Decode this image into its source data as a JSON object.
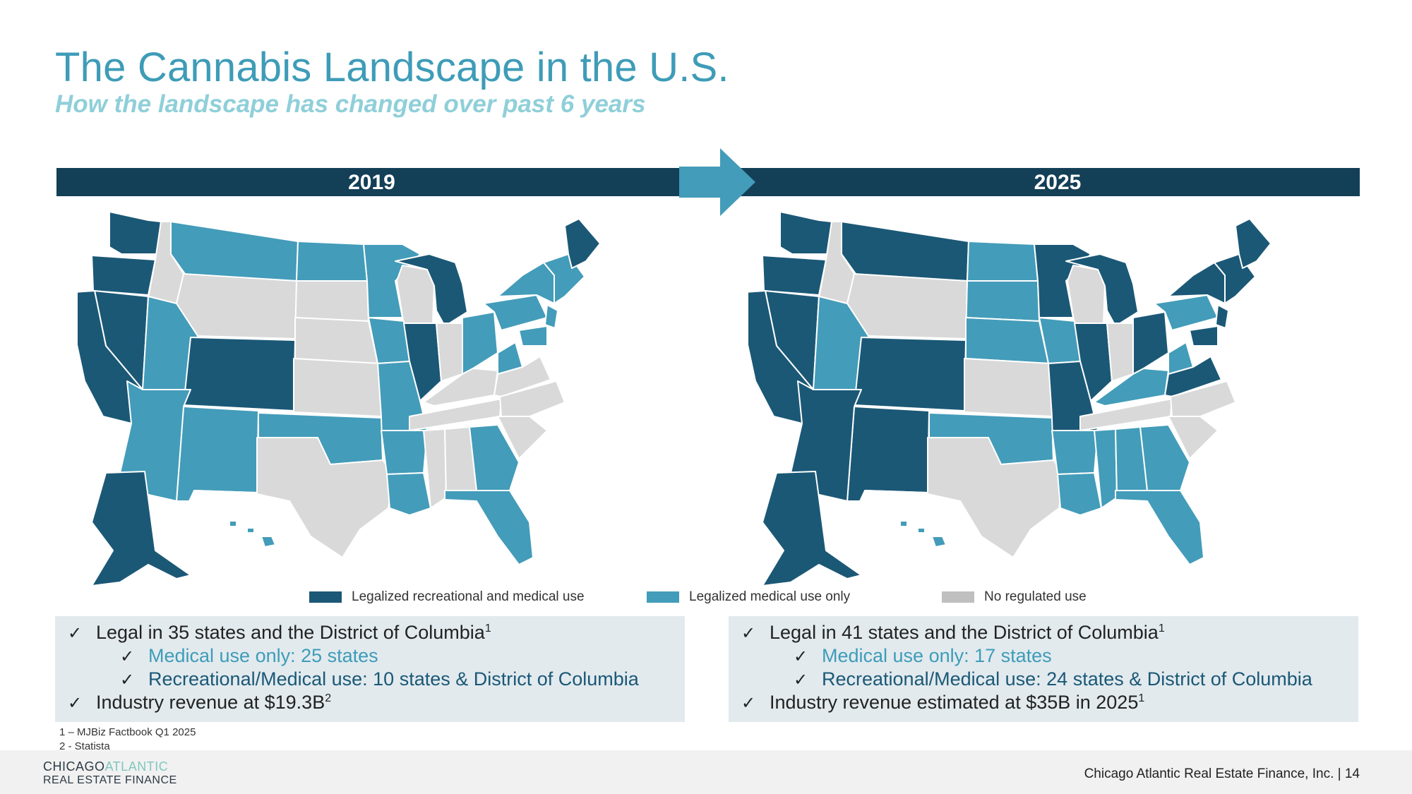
{
  "header": {
    "title": "The Cannabis Landscape in the U.S.",
    "subtitle": "How the landscape has changed over past 6 years"
  },
  "timeline": {
    "year_left": "2019",
    "year_right": "2025"
  },
  "colors": {
    "recreational_and_medical": "#1b5876",
    "medical_only": "#439cb9",
    "no_regulated_use": "#d9d9d9",
    "legend_no_regulated": "#bfbfbf",
    "timeline_bar": "#133f57"
  },
  "legend": {
    "items": [
      {
        "label": "Legalized recreational and medical use"
      },
      {
        "label": "Legalized medical use only"
      },
      {
        "label": "No regulated use"
      }
    ]
  },
  "panel_2019": {
    "lines": [
      {
        "text": "Legal in 35 states and the District of Columbia",
        "sup": "1"
      },
      {
        "text": "Medical use only: 25 states",
        "sup": ""
      },
      {
        "text": "Recreational/Medical use: 10 states & District of Columbia",
        "sup": ""
      },
      {
        "text": "Industry revenue at $19.3B",
        "sup": "2"
      }
    ]
  },
  "panel_2025": {
    "lines": [
      {
        "text": "Legal in 41 states and the District of Columbia",
        "sup": "1"
      },
      {
        "text": "Medical use only: 17 states",
        "sup": ""
      },
      {
        "text": "Recreational/Medical use: 24 states & District of Columbia",
        "sup": ""
      },
      {
        "text": "Industry revenue estimated at $35B in 2025",
        "sup": "1"
      }
    ]
  },
  "footnotes": [
    "1 – MJBiz Factbook Q1 2025",
    "2 -  Statista"
  ],
  "footer": {
    "logo_line1_a": "CHICAGO",
    "logo_line1_b": "ATLANTIC",
    "logo_line2": "REAL ESTATE FINANCE",
    "company_page": "Chicago Atlantic Real Estate Finance, Inc. |   14"
  }
}
